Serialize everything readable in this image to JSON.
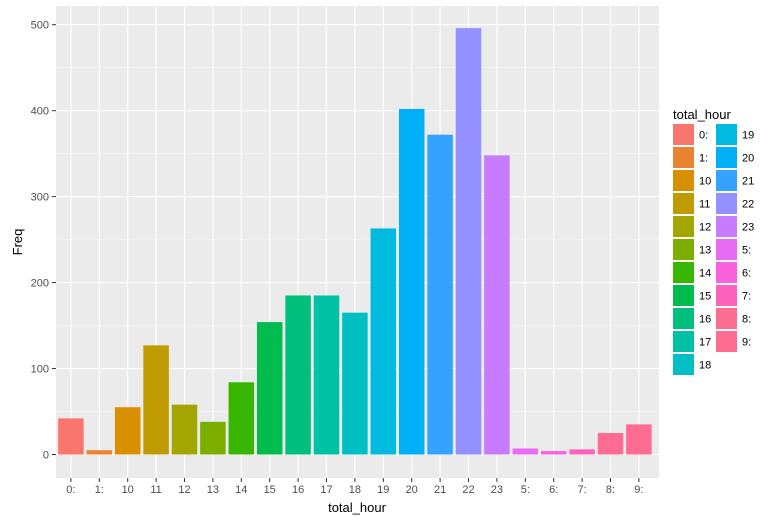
{
  "chart_data": {
    "type": "bar",
    "xlabel": "total_hour",
    "ylabel": "Freq",
    "ylim": [
      0,
      500
    ],
    "yticks": [
      0,
      100,
      200,
      300,
      400,
      500
    ],
    "grid": true,
    "legend": {
      "title": "total_hour",
      "placement": "right",
      "columns": 2
    },
    "categories": [
      "0:",
      "1:",
      "10",
      "11",
      "12",
      "13",
      "14",
      "15",
      "16",
      "17",
      "18",
      "19",
      "20",
      "21",
      "22",
      "23",
      "5:",
      "6:",
      "7:",
      "8:",
      "9:"
    ],
    "values": [
      42,
      5,
      55,
      127,
      58,
      38,
      84,
      154,
      185,
      185,
      165,
      263,
      402,
      372,
      496,
      348,
      7,
      4,
      6,
      25,
      35
    ],
    "colors": [
      "#F8766D",
      "#EA8331",
      "#D89000",
      "#C09B00",
      "#A3A500",
      "#7CAE00",
      "#39B600",
      "#00BB4E",
      "#00BF7D",
      "#00C1A3",
      "#00BFC4",
      "#00BAE0",
      "#00B0F6",
      "#35A2FF",
      "#9590FF",
      "#C77CFF",
      "#E76BF3",
      "#FA62DB",
      "#FF62BC",
      "#FF6C91",
      "#FF6C91"
    ]
  }
}
